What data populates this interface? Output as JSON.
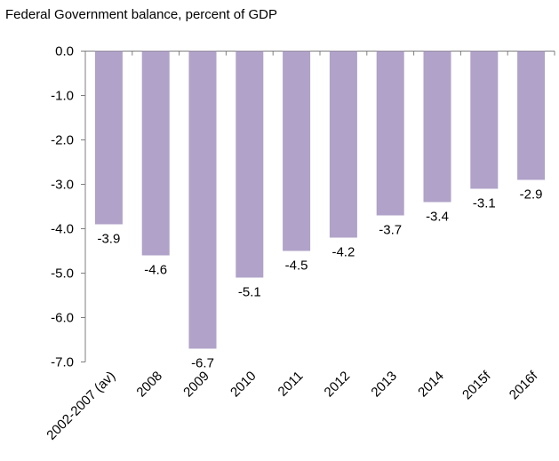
{
  "chart_data": {
    "type": "bar",
    "title": "Federal Government balance, percent of GDP",
    "categories": [
      "2002-2007 (av)",
      "2008",
      "2009",
      "2010",
      "2011",
      "2012",
      "2013",
      "2014",
      "2015f",
      "2016f"
    ],
    "values": [
      -3.9,
      -4.6,
      -6.7,
      -5.1,
      -4.5,
      -4.2,
      -3.7,
      -3.4,
      -3.1,
      -2.9
    ],
    "y_ticks": [
      "0.0",
      "-1.0",
      "-2.0",
      "-3.0",
      "-4.0",
      "-5.0",
      "-6.0",
      "-7.0"
    ],
    "ylim": [
      -7,
      0
    ],
    "bar_color": "#b0a2c8",
    "grid": false,
    "legend": "none"
  }
}
